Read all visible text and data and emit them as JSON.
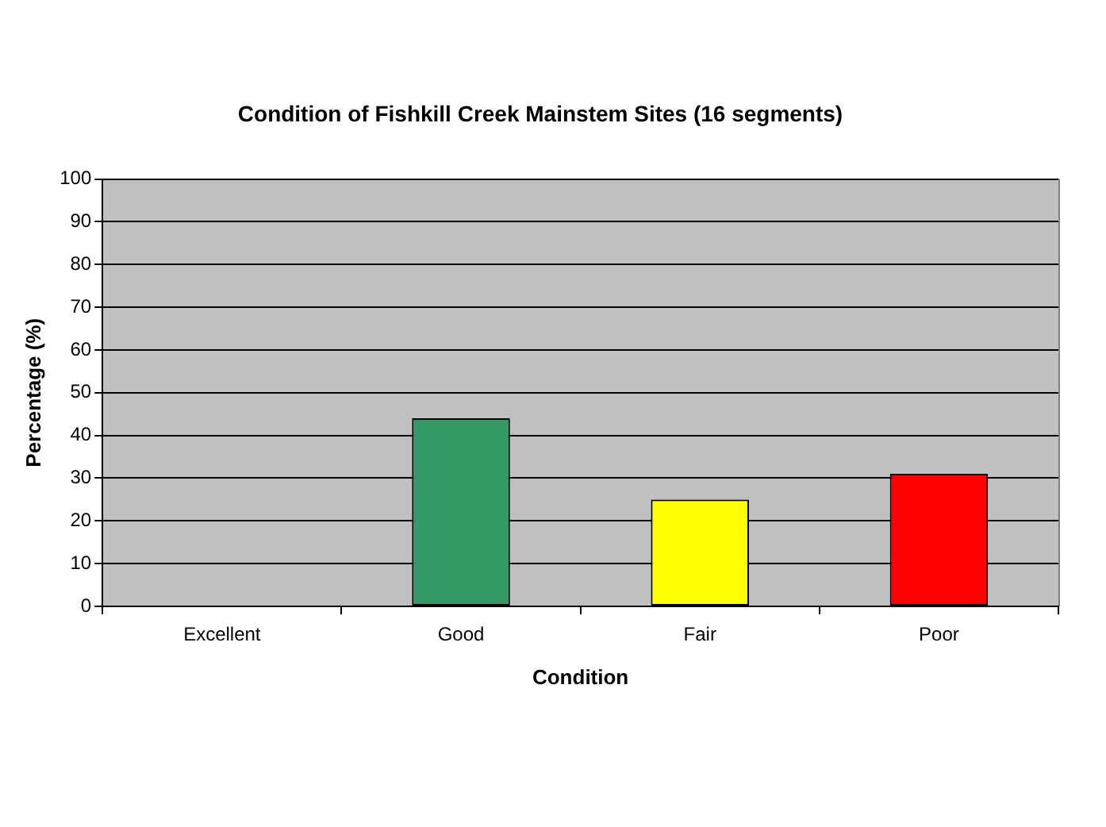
{
  "chart_data": {
    "type": "bar",
    "title": "Condition of Fishkill Creek Mainstem Sites (16 segments)",
    "xlabel": "Condition",
    "ylabel": "Percentage (%)",
    "categories": [
      "Excellent",
      "Good",
      "Fair",
      "Poor"
    ],
    "values": [
      0,
      44,
      25,
      31
    ],
    "colors": [
      null,
      "#339966",
      "#ffff00",
      "#ff0000"
    ],
    "ylim": [
      0,
      100
    ],
    "yticks": [
      0,
      10,
      20,
      30,
      40,
      50,
      60,
      70,
      80,
      90,
      100
    ],
    "grid": "y"
  }
}
